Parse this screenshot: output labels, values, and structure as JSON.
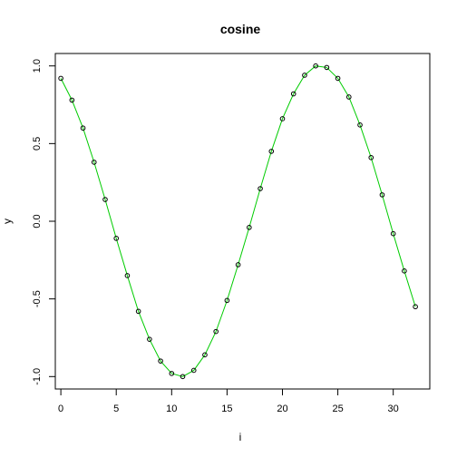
{
  "chart_data": {
    "type": "scatter",
    "title": "cosine",
    "xlabel": "i",
    "ylabel": "y",
    "xlim": [
      -0.5,
      33.3
    ],
    "ylim": [
      -1.08,
      1.08
    ],
    "xticks": [
      0,
      5,
      10,
      15,
      20,
      25,
      30
    ],
    "yticks": [
      -1.0,
      -0.5,
      0.0,
      0.5,
      1.0
    ],
    "ytick_labels": [
      "-1.0",
      "-0.5",
      "0.0",
      "0.5",
      "1.0"
    ],
    "grid": false,
    "legend": "none",
    "point_color": "#000000",
    "line_color": "#00cc00",
    "x": [
      0,
      1,
      2,
      3,
      4,
      5,
      6,
      7,
      8,
      9,
      10,
      11,
      12,
      13,
      14,
      15,
      16,
      17,
      18,
      19,
      20,
      21,
      22,
      23,
      24,
      25,
      26,
      27,
      28,
      29,
      30,
      31,
      32
    ],
    "y": [
      0.92,
      0.78,
      0.6,
      0.38,
      0.14,
      -0.11,
      -0.35,
      -0.58,
      -0.76,
      -0.9,
      -0.98,
      -1.0,
      -0.96,
      -0.86,
      -0.71,
      -0.51,
      -0.28,
      -0.04,
      0.21,
      0.45,
      0.66,
      0.82,
      0.94,
      1.0,
      0.99,
      0.92,
      0.8,
      0.62,
      0.41,
      0.17,
      -0.08,
      -0.32,
      -0.55
    ]
  }
}
